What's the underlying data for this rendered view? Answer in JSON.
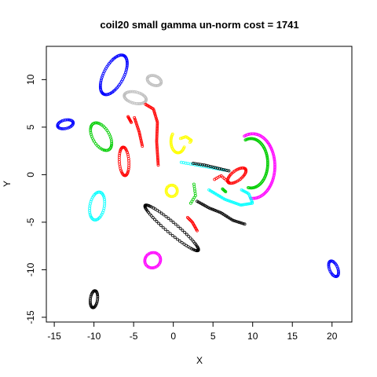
{
  "chart_data": {
    "type": "scatter",
    "title": "coil20 small gamma un-norm cost = 1741",
    "xlabel": "X",
    "ylabel": "Y",
    "xlim": [
      -16,
      22.5
    ],
    "ylim": [
      -15.5,
      13.5
    ],
    "xticks": [
      -15,
      -10,
      -5,
      0,
      5,
      10,
      15,
      20
    ],
    "yticks": [
      -15,
      -10,
      -5,
      0,
      5,
      10
    ],
    "grid": false,
    "legend": "none",
    "marker": "open-circle",
    "clusters": [
      {
        "color": "#0000ff",
        "kind": "loop",
        "cx": -7.5,
        "cy": 10.5,
        "rx": 1.2,
        "ry": 2.4,
        "rot": -35,
        "n": 70
      },
      {
        "color": "#0000ff",
        "kind": "loop",
        "cx": -13.6,
        "cy": 5.3,
        "rx": 1.0,
        "ry": 0.45,
        "rot": 10,
        "n": 30
      },
      {
        "color": "#0000ff",
        "kind": "loop",
        "cx": 20.2,
        "cy": -9.9,
        "rx": 0.5,
        "ry": 0.9,
        "rot": 30,
        "n": 30
      },
      {
        "color": "#bebebe",
        "kind": "loop",
        "cx": -2.4,
        "cy": 9.9,
        "rx": 0.9,
        "ry": 0.5,
        "rot": -15,
        "n": 30
      },
      {
        "color": "#bebebe",
        "kind": "loop",
        "cx": -4.8,
        "cy": 8.1,
        "rx": 1.4,
        "ry": 0.6,
        "rot": -10,
        "n": 40
      },
      {
        "color": "#ff0000",
        "kind": "line",
        "pts": [
          [
            -3.5,
            7.4
          ],
          [
            -2.5,
            6.9
          ],
          [
            -2.0,
            5.5
          ],
          [
            -2.1,
            3.5
          ],
          [
            -1.9,
            1.0
          ]
        ],
        "n": 45
      },
      {
        "color": "#ff0000",
        "kind": "line",
        "pts": [
          [
            -4.9,
            6.0
          ],
          [
            -4.3,
            4.5
          ],
          [
            -3.9,
            3.0
          ]
        ],
        "n": 20
      },
      {
        "color": "#ff0000",
        "kind": "line",
        "pts": [
          [
            -5.7,
            6.1
          ],
          [
            -5.3,
            5.5
          ]
        ],
        "n": 8
      },
      {
        "color": "#ff0000",
        "kind": "loop",
        "cx": -6.2,
        "cy": 1.4,
        "rx": 0.6,
        "ry": 1.5,
        "rot": 5,
        "n": 40
      },
      {
        "color": "#ff0000",
        "kind": "line",
        "pts": [
          [
            1.8,
            -4.5
          ],
          [
            2.4,
            -5.0
          ],
          [
            2.8,
            -5.6
          ],
          [
            3.0,
            -5.9
          ]
        ],
        "n": 14
      },
      {
        "color": "#ff0000",
        "kind": "loop",
        "cx": 8.0,
        "cy": -0.1,
        "rx": 1.3,
        "ry": 0.55,
        "rot": 30,
        "n": 40
      },
      {
        "color": "#00cd00",
        "kind": "loop",
        "cx": -9.1,
        "cy": 4.0,
        "rx": 1.0,
        "ry": 1.7,
        "rot": 40,
        "n": 45
      },
      {
        "color": "#00cd00",
        "kind": "arc",
        "cx": 9.8,
        "cy": 1.2,
        "rx": 2.1,
        "ry": 2.6,
        "a0": 110,
        "a1": -100,
        "n": 65
      },
      {
        "color": "#00cd00",
        "kind": "line",
        "pts": [
          [
            2.6,
            -1.0
          ],
          [
            2.8,
            -2.2
          ],
          [
            2.2,
            -3.0
          ]
        ],
        "n": 10
      },
      {
        "color": "#00cd00",
        "kind": "line",
        "pts": [
          [
            6.2,
            -1.5
          ],
          [
            6.6,
            -1.8
          ]
        ],
        "n": 6
      },
      {
        "color": "#ff00ff",
        "kind": "arc",
        "cx": 10.0,
        "cy": 0.9,
        "rx": 2.8,
        "ry": 3.4,
        "a0": 112,
        "a1": -95,
        "n": 75
      },
      {
        "color": "#ff00ff",
        "kind": "loop",
        "cx": -2.6,
        "cy": -9.0,
        "rx": 1.0,
        "ry": 0.8,
        "rot": 10,
        "n": 35
      },
      {
        "color": "#00ffff",
        "kind": "loop",
        "cx": -9.6,
        "cy": -3.3,
        "rx": 0.9,
        "ry": 1.5,
        "rot": -15,
        "n": 40
      },
      {
        "color": "#00ffff",
        "kind": "line",
        "pts": [
          [
            1.0,
            1.3
          ],
          [
            3.0,
            1.0
          ],
          [
            5.0,
            0.7
          ],
          [
            7.0,
            0.4
          ]
        ],
        "n": 22
      },
      {
        "color": "#00ffff",
        "kind": "line",
        "pts": [
          [
            4.5,
            -1.6
          ],
          [
            6.5,
            -2.6
          ],
          [
            8.5,
            -3.2
          ],
          [
            10.0,
            -3.0
          ],
          [
            9.5,
            -2.0
          ],
          [
            8.6,
            -1.6
          ]
        ],
        "n": 45
      },
      {
        "color": "#ffff00",
        "kind": "arc",
        "cx": 0.6,
        "cy": 3.5,
        "rx": 0.9,
        "ry": 1.2,
        "a0": 140,
        "a1": 330,
        "n": 28
      },
      {
        "color": "#ffff00",
        "kind": "line",
        "pts": [
          [
            0.9,
            3.8
          ],
          [
            1.6,
            4.0
          ],
          [
            2.3,
            3.6
          ],
          [
            2.1,
            3.4
          ]
        ],
        "n": 12
      },
      {
        "color": "#ffff00",
        "kind": "loop",
        "cx": -0.2,
        "cy": -1.7,
        "rx": 0.7,
        "ry": 0.6,
        "rot": 0,
        "n": 25
      },
      {
        "color": "#000000",
        "kind": "loop",
        "cx": -0.2,
        "cy": -5.6,
        "rx": 4.1,
        "ry": 0.6,
        "rot": -35,
        "n": 70
      },
      {
        "color": "#000000",
        "kind": "line",
        "pts": [
          [
            3.0,
            -2.8
          ],
          [
            4.5,
            -3.5
          ],
          [
            6.0,
            -4.0
          ],
          [
            7.5,
            -4.8
          ],
          [
            9.0,
            -5.2
          ]
        ],
        "n": 35
      },
      {
        "color": "#000000",
        "kind": "line",
        "pts": [
          [
            2.5,
            1.2
          ],
          [
            4.0,
            1.0
          ],
          [
            5.5,
            0.7
          ],
          [
            7.0,
            0.4
          ]
        ],
        "n": 20
      },
      {
        "color": "#000000",
        "kind": "loop",
        "cx": -10.0,
        "cy": -13.1,
        "rx": 0.45,
        "ry": 0.9,
        "rot": -10,
        "n": 30
      },
      {
        "color": "#ff0000",
        "kind": "line",
        "pts": [
          [
            5.2,
            -0.5
          ],
          [
            6.0,
            -0.1
          ],
          [
            7.0,
            -0.8
          ]
        ],
        "n": 10
      }
    ]
  }
}
